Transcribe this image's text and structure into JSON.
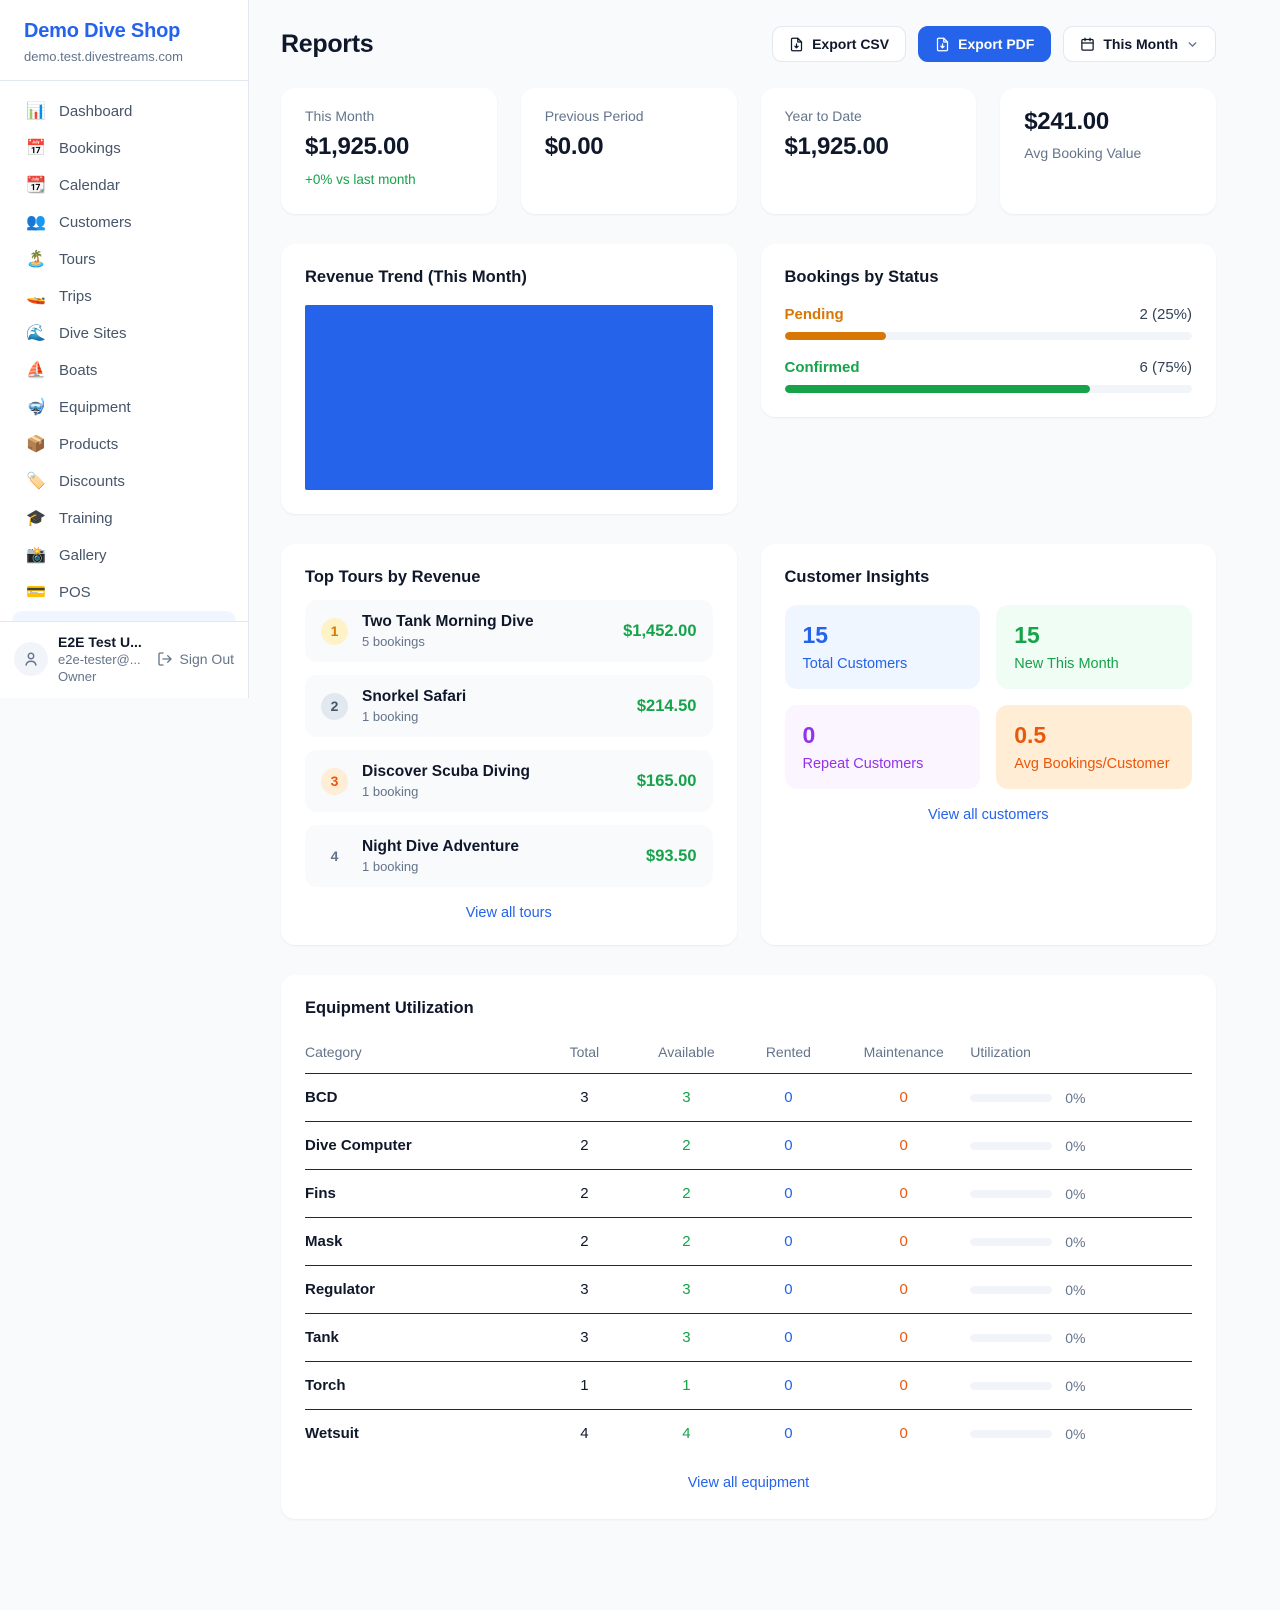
{
  "colors": {
    "accent": "#2563eb",
    "positive": "#16a34a",
    "pending": "#d97706",
    "maintenance_orange": "#ea580c",
    "repeat_purple": "#9333ea",
    "link": "#2563eb"
  },
  "sidebar": {
    "shop_name": "Demo Dive Shop",
    "shop_domain": "demo.test.divestreams.com",
    "nav": [
      {
        "id": "dashboard",
        "icon": "📊",
        "label": "Dashboard"
      },
      {
        "id": "bookings",
        "icon": "📅",
        "label": "Bookings"
      },
      {
        "id": "calendar",
        "icon": "📆",
        "label": "Calendar"
      },
      {
        "id": "customers",
        "icon": "👥",
        "label": "Customers"
      },
      {
        "id": "tours",
        "icon": "🏝️",
        "label": "Tours"
      },
      {
        "id": "trips",
        "icon": "🚤",
        "label": "Trips"
      },
      {
        "id": "dive-sites",
        "icon": "🌊",
        "label": "Dive Sites"
      },
      {
        "id": "boats",
        "icon": "⛵",
        "label": "Boats"
      },
      {
        "id": "equipment",
        "icon": "🤿",
        "label": "Equipment"
      },
      {
        "id": "products",
        "icon": "📦",
        "label": "Products"
      },
      {
        "id": "discounts",
        "icon": "🏷️",
        "label": "Discounts"
      },
      {
        "id": "training",
        "icon": "🎓",
        "label": "Training"
      },
      {
        "id": "gallery",
        "icon": "📸",
        "label": "Gallery"
      },
      {
        "id": "pos",
        "icon": "💳",
        "label": "POS"
      }
    ],
    "user": {
      "name": "E2E Test U...",
      "email": "e2e-tester@...",
      "role": "Owner",
      "sign_out_label": "Sign Out"
    }
  },
  "header": {
    "title": "Reports",
    "export_csv_label": "Export CSV",
    "export_pdf_label": "Export PDF",
    "period_label": "This Month"
  },
  "stats": [
    {
      "label": "This Month",
      "value": "$1,925.00",
      "delta": "+0% vs last month"
    },
    {
      "label": "Previous Period",
      "value": "$0.00"
    },
    {
      "label": "Year to Date",
      "value": "$1,925.00"
    },
    {
      "label": "Avg Booking Value",
      "value": "$241.00",
      "value_first": true
    }
  ],
  "revenue_trend": {
    "title": "Revenue Trend (This Month)",
    "bar_color": "#2563eb"
  },
  "bookings_by_status": {
    "title": "Bookings by Status",
    "items": [
      {
        "label": "Pending",
        "count_text": "2 (25%)",
        "percent": 25,
        "color": "#d97706"
      },
      {
        "label": "Confirmed",
        "count_text": "6 (75%)",
        "percent": 75,
        "color": "#16a34a"
      }
    ]
  },
  "top_tours": {
    "title": "Top Tours by Revenue",
    "view_all_label": "View all tours",
    "items": [
      {
        "rank": 1,
        "name": "Two Tank Morning Dive",
        "bookings": "5 bookings",
        "amount": "$1,452.00",
        "badge_bg": "#fef3c7",
        "badge_color": "#d97706"
      },
      {
        "rank": 2,
        "name": "Snorkel Safari",
        "bookings": "1 booking",
        "amount": "$214.50",
        "badge_bg": "#e2e8f0",
        "badge_color": "#475569"
      },
      {
        "rank": 3,
        "name": "Discover Scuba Diving",
        "bookings": "1 booking",
        "amount": "$165.00",
        "badge_bg": "#ffedd5",
        "badge_color": "#ea580c"
      },
      {
        "rank": 4,
        "name": "Night Dive Adventure",
        "bookings": "1 booking",
        "amount": "$93.50",
        "badge_bg": "transparent",
        "badge_color": "#64748b"
      }
    ]
  },
  "customer_insights": {
    "title": "Customer Insights",
    "view_all_label": "View all customers",
    "tiles": [
      {
        "value": "15",
        "label": "Total Customers",
        "bg": "#eff6ff",
        "color": "#2563eb"
      },
      {
        "value": "15",
        "label": "New This Month",
        "bg": "#f0fdf4",
        "color": "#16a34a"
      },
      {
        "value": "0",
        "label": "Repeat Customers",
        "bg": "#faf5ff",
        "color": "#9333ea"
      },
      {
        "value": "0.5",
        "label": "Avg Bookings/Customer",
        "bg": "#ffedd5",
        "color": "#ea580c"
      }
    ]
  },
  "equipment": {
    "title": "Equipment Utilization",
    "view_all_label": "View all equipment",
    "columns": [
      "Category",
      "Total",
      "Available",
      "Rented",
      "Maintenance",
      "Utilization"
    ],
    "rows": [
      {
        "category": "BCD",
        "total": 3,
        "available": 3,
        "rented": 0,
        "maintenance": 0,
        "utilization": "0%",
        "utilization_pct": 0
      },
      {
        "category": "Dive Computer",
        "total": 2,
        "available": 2,
        "rented": 0,
        "maintenance": 0,
        "utilization": "0%",
        "utilization_pct": 0
      },
      {
        "category": "Fins",
        "total": 2,
        "available": 2,
        "rented": 0,
        "maintenance": 0,
        "utilization": "0%",
        "utilization_pct": 0
      },
      {
        "category": "Mask",
        "total": 2,
        "available": 2,
        "rented": 0,
        "maintenance": 0,
        "utilization": "0%",
        "utilization_pct": 0
      },
      {
        "category": "Regulator",
        "total": 3,
        "available": 3,
        "rented": 0,
        "maintenance": 0,
        "utilization": "0%",
        "utilization_pct": 0
      },
      {
        "category": "Tank",
        "total": 3,
        "available": 3,
        "rented": 0,
        "maintenance": 0,
        "utilization": "0%",
        "utilization_pct": 0
      },
      {
        "category": "Torch",
        "total": 1,
        "available": 1,
        "rented": 0,
        "maintenance": 0,
        "utilization": "0%",
        "utilization_pct": 0
      },
      {
        "category": "Wetsuit",
        "total": 4,
        "available": 4,
        "rented": 0,
        "maintenance": 0,
        "utilization": "0%",
        "utilization_pct": 0
      }
    ]
  }
}
